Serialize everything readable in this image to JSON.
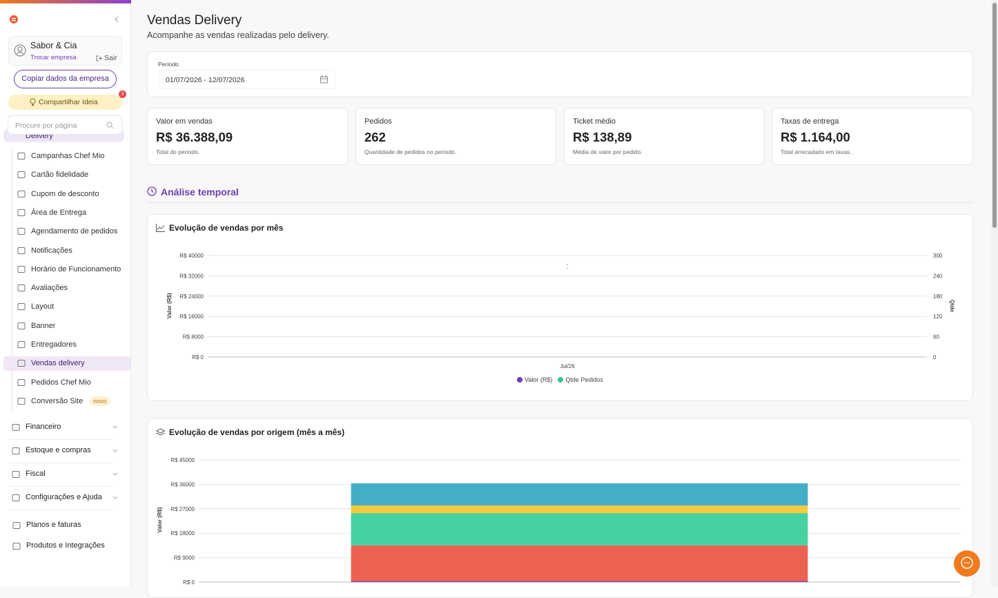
{
  "sidebar": {
    "company_name": "Sabor & Cia",
    "switch_company": "Trocar empresa",
    "logout": "Sair",
    "copy_button": "Copiar dados da empresa",
    "share_button": "Compartilhar Ideia",
    "share_badge": "3",
    "search_placeholder": "Procure por página",
    "section": "Delivery",
    "menu": [
      {
        "label": "Campanhas Chef Mio"
      },
      {
        "label": "Cartão fidelidade"
      },
      {
        "label": "Cupom de desconto"
      },
      {
        "label": "Área de Entrega"
      },
      {
        "label": "Agendamento de pedidos"
      },
      {
        "label": "Notificações"
      },
      {
        "label": "Horário de Funcionamento"
      },
      {
        "label": "Avaliações"
      },
      {
        "label": "Layout"
      },
      {
        "label": "Banner"
      },
      {
        "label": "Entregadores"
      },
      {
        "label": "Vendas delivery",
        "active": true
      },
      {
        "label": "Pedidos Chef Mio"
      },
      {
        "label": "Conversão Site",
        "badge": "novo"
      }
    ],
    "groups": [
      "Financeiro",
      "Estoque e compras",
      "Fiscal",
      "Configurações e Ajuda"
    ],
    "links": [
      "Planos e faturas",
      "Produtos e Integrações"
    ]
  },
  "header": {
    "title": "Vendas Delivery",
    "subtitle": "Acompanhe as vendas realizadas pelo delivery."
  },
  "filter": {
    "label": "Período",
    "value": "01/07/2026 - 12/07/2026"
  },
  "kpis": [
    {
      "label": "Valor em vendas",
      "value": "R$ 36.388,09",
      "note": "Total do período."
    },
    {
      "label": "Pedidos",
      "value": "262",
      "note": "Quantidade de pedidos no período."
    },
    {
      "label": "Ticket médio",
      "value": "R$ 138,89",
      "note": "Média de valor por pedido."
    },
    {
      "label": "Taxas de entrega",
      "value": "R$ 1.164,00",
      "note": "Total arrecadado em taxas."
    }
  ],
  "section_title": "Análise temporal",
  "chart_data": [
    {
      "type": "line",
      "title": "Evolução de vendas por mês",
      "categories": [
        "Jul/26"
      ],
      "y_label": "Valor (R$)",
      "y2_label": "Qtde",
      "ylim": [
        0,
        40000
      ],
      "yticks": [
        {
          "value": 0,
          "label": "R$ 0"
        },
        {
          "value": 8000,
          "label": "R$ 8000"
        },
        {
          "value": 16000,
          "label": "R$ 16000"
        },
        {
          "value": 24000,
          "label": "R$ 24000"
        },
        {
          "value": 32000,
          "label": "R$ 32000"
        },
        {
          "value": 40000,
          "label": "R$ 40000"
        }
      ],
      "y2lim": [
        0,
        300
      ],
      "y2ticks": [
        0,
        60,
        120,
        180,
        240,
        300
      ],
      "grid": true,
      "legend": "bottom",
      "series": [
        {
          "name": "Valor (R$)",
          "color": "#6a3db0",
          "values": [
            36388.09
          ]
        },
        {
          "name": "Qtde Pedidos",
          "color": "#3cc48f",
          "values": [
            262
          ],
          "axis": "y2"
        }
      ]
    },
    {
      "type": "stacked_bar",
      "title": "Evolução de vendas por origem (mês a mês)",
      "categories": [
        null
      ],
      "y_label": "Valor (R$)",
      "ylim": [
        0,
        45000
      ],
      "yticks": [
        {
          "value": 0,
          "label": "R$ 0"
        },
        {
          "value": 9000,
          "label": "R$ 9000"
        },
        {
          "value": 18000,
          "label": "R$ 18000"
        },
        {
          "value": 27000,
          "label": "R$ 27000"
        },
        {
          "value": 36000,
          "label": "R$ 36000"
        },
        {
          "value": 45000,
          "label": "R$ 45000"
        }
      ],
      "grid": true,
      "series": [
        {
          "color": "#7b4fb0",
          "values": [
            400
          ]
        },
        {
          "color": "#ec6152",
          "values": [
            13100
          ]
        },
        {
          "color": "#48d1a0",
          "values": [
            11900
          ]
        },
        {
          "color": "#f7c93e",
          "values": [
            2800
          ]
        },
        {
          "color": "#44aec7",
          "values": [
            8188
          ]
        }
      ]
    }
  ]
}
